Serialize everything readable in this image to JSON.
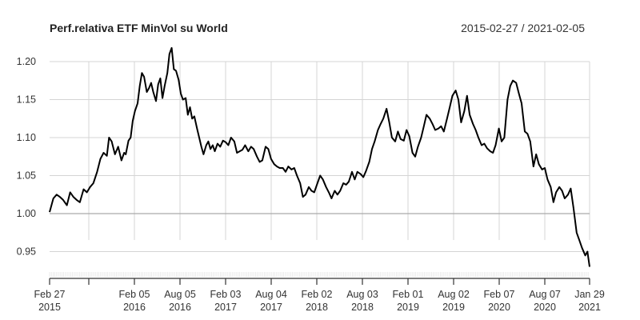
{
  "chart_data": {
    "type": "line",
    "title": "Perf.relativa ETF MinVol  su World",
    "date_range": "2015-02-27 / 2021-02-05",
    "xlabel": "",
    "ylabel": "",
    "ylim": [
      0.925,
      1.22
    ],
    "grid": true,
    "legend": null,
    "y_ticks": [
      "1.20",
      "1.15",
      "1.10",
      "1.05",
      "1.00",
      "0.95"
    ],
    "y_tick_values": [
      1.2,
      1.15,
      1.1,
      1.05,
      1.0,
      0.95
    ],
    "x_ticks": [
      {
        "line1": "Feb 27",
        "line2": "2015"
      },
      {
        "line1": "",
        "line2": ""
      },
      {
        "line1": "Feb 05",
        "line2": "2016"
      },
      {
        "line1": "Aug 05",
        "line2": "2016"
      },
      {
        "line1": "Feb 03",
        "line2": "2017"
      },
      {
        "line1": "Aug 04",
        "line2": "2017"
      },
      {
        "line1": "Feb 02",
        "line2": "2018"
      },
      {
        "line1": "Aug 03",
        "line2": "2018"
      },
      {
        "line1": "Feb 01",
        "line2": "2019"
      },
      {
        "line1": "Aug 02",
        "line2": "2019"
      },
      {
        "line1": "Feb 07",
        "line2": "2020"
      },
      {
        "line1": "Aug 07",
        "line2": "2020"
      },
      {
        "line1": "Jan 29",
        "line2": "2021"
      }
    ],
    "series": [
      {
        "name": "Perf.relativa ETF MinVol su World",
        "color": "#000000",
        "x_frac": [
          0.0,
          0.007,
          0.013,
          0.019,
          0.025,
          0.032,
          0.038,
          0.044,
          0.05,
          0.056,
          0.063,
          0.069,
          0.075,
          0.081,
          0.088,
          0.094,
          0.1,
          0.106,
          0.11,
          0.115,
          0.121,
          0.127,
          0.133,
          0.138,
          0.141,
          0.146,
          0.15,
          0.154,
          0.158,
          0.163,
          0.167,
          0.171,
          0.175,
          0.18,
          0.184,
          0.188,
          0.192,
          0.197,
          0.201,
          0.205,
          0.209,
          0.213,
          0.218,
          0.222,
          0.226,
          0.23,
          0.234,
          0.239,
          0.243,
          0.247,
          0.252,
          0.256,
          0.26,
          0.264,
          0.268,
          0.273,
          0.277,
          0.281,
          0.285,
          0.29,
          0.294,
          0.298,
          0.302,
          0.306,
          0.311,
          0.316,
          0.321,
          0.326,
          0.331,
          0.336,
          0.342,
          0.347,
          0.352,
          0.357,
          0.362,
          0.368,
          0.373,
          0.378,
          0.384,
          0.389,
          0.394,
          0.4,
          0.405,
          0.41,
          0.416,
          0.421,
          0.426,
          0.432,
          0.437,
          0.442,
          0.448,
          0.453,
          0.458,
          0.464,
          0.469,
          0.474,
          0.48,
          0.485,
          0.49,
          0.496,
          0.501,
          0.506,
          0.512,
          0.517,
          0.522,
          0.528,
          0.533,
          0.538,
          0.544,
          0.549,
          0.554,
          0.56,
          0.565,
          0.57,
          0.576,
          0.581,
          0.586,
          0.592,
          0.597,
          0.602,
          0.608,
          0.613,
          0.618,
          0.624,
          0.629,
          0.634,
          0.64,
          0.645,
          0.65,
          0.656,
          0.661,
          0.666,
          0.672,
          0.677,
          0.682,
          0.688,
          0.693,
          0.698,
          0.704,
          0.709,
          0.714,
          0.72,
          0.725,
          0.73,
          0.736,
          0.741,
          0.746,
          0.752,
          0.757,
          0.762,
          0.768,
          0.773,
          0.778,
          0.784,
          0.789,
          0.794,
          0.8,
          0.805,
          0.81,
          0.816,
          0.821,
          0.826,
          0.832,
          0.837,
          0.842,
          0.848,
          0.853,
          0.858,
          0.864,
          0.869,
          0.874,
          0.88,
          0.885,
          0.89,
          0.896,
          0.901,
          0.906,
          0.912,
          0.917,
          0.922,
          0.928,
          0.933,
          0.938,
          0.944,
          0.949,
          0.954,
          0.96,
          0.965,
          0.97,
          0.976,
          0.981,
          0.986,
          0.992,
          0.996,
          1.0
        ],
        "values": [
          1.002,
          1.02,
          1.025,
          1.022,
          1.018,
          1.011,
          1.028,
          1.022,
          1.018,
          1.015,
          1.032,
          1.028,
          1.035,
          1.04,
          1.055,
          1.072,
          1.08,
          1.076,
          1.1,
          1.095,
          1.078,
          1.088,
          1.07,
          1.08,
          1.078,
          1.096,
          1.1,
          1.122,
          1.135,
          1.145,
          1.168,
          1.185,
          1.18,
          1.16,
          1.165,
          1.172,
          1.16,
          1.148,
          1.17,
          1.178,
          1.152,
          1.168,
          1.185,
          1.21,
          1.218,
          1.19,
          1.188,
          1.176,
          1.158,
          1.15,
          1.152,
          1.13,
          1.14,
          1.125,
          1.128,
          1.112,
          1.1,
          1.088,
          1.078,
          1.09,
          1.095,
          1.085,
          1.09,
          1.082,
          1.092,
          1.088,
          1.096,
          1.094,
          1.09,
          1.1,
          1.095,
          1.08,
          1.082,
          1.084,
          1.09,
          1.082,
          1.088,
          1.085,
          1.075,
          1.068,
          1.07,
          1.088,
          1.085,
          1.072,
          1.065,
          1.062,
          1.06,
          1.06,
          1.055,
          1.062,
          1.058,
          1.06,
          1.05,
          1.04,
          1.022,
          1.025,
          1.035,
          1.03,
          1.028,
          1.04,
          1.05,
          1.045,
          1.035,
          1.028,
          1.02,
          1.03,
          1.025,
          1.03,
          1.04,
          1.038,
          1.042,
          1.055,
          1.045,
          1.055,
          1.052,
          1.048,
          1.056,
          1.068,
          1.085,
          1.095,
          1.11,
          1.118,
          1.125,
          1.138,
          1.12,
          1.1,
          1.095,
          1.108,
          1.098,
          1.096,
          1.11,
          1.102,
          1.08,
          1.075,
          1.088,
          1.1,
          1.115,
          1.13,
          1.125,
          1.118,
          1.11,
          1.112,
          1.115,
          1.108,
          1.125,
          1.14,
          1.155,
          1.162,
          1.15,
          1.12,
          1.135,
          1.155,
          1.13,
          1.118,
          1.11,
          1.1,
          1.09,
          1.092,
          1.086,
          1.082,
          1.08,
          1.09,
          1.112,
          1.095,
          1.1,
          1.15,
          1.168,
          1.175,
          1.172,
          1.158,
          1.145,
          1.108,
          1.105,
          1.095,
          1.062,
          1.078,
          1.065,
          1.058,
          1.06,
          1.045,
          1.035,
          1.015,
          1.028,
          1.035,
          1.03,
          1.02,
          1.025,
          1.033,
          1.008,
          0.975,
          0.965,
          0.955,
          0.945,
          0.95,
          0.93
        ]
      }
    ]
  }
}
